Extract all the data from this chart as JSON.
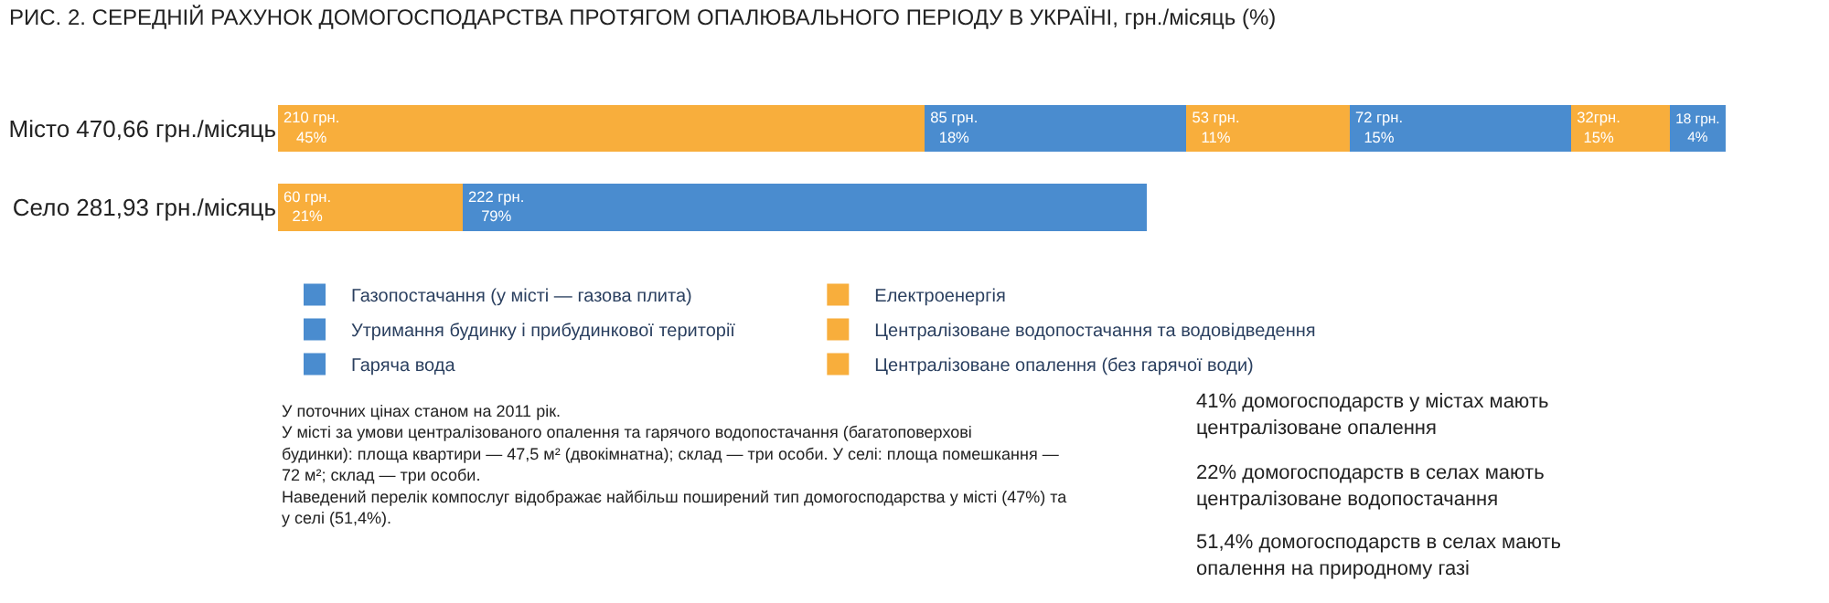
{
  "chart_data": {
    "type": "bar",
    "orientation": "horizontal",
    "stacked": true,
    "title": "РИС. 2. СЕРЕДНІЙ РАХУНОК ДОМОГОСПОДАРСТВА ПРОТЯГОМ ОПАЛЮВАЛЬНОГО ПЕРІОДУ В УКРАЇНІ, грн./місяць (%)",
    "categories": [
      "Місто 470,66 грн./місяць",
      "Село 281,93 грн./місяць"
    ],
    "series": [
      {
        "name": "Централізоване опалення (без гарячої води)",
        "color": "#f8ae3c",
        "values": [
          210,
          null
        ],
        "value_labels": [
          "210 грн.\n45%",
          null
        ]
      },
      {
        "name": "Гаряча вода",
        "color": "#4a8ccf",
        "values": [
          85,
          null
        ],
        "value_labels": [
          "85 грн.\n18%",
          null
        ]
      },
      {
        "name": "Централізоване водопостачання та водовідведення",
        "color": "#f8ae3c",
        "values": [
          53,
          null
        ],
        "value_labels": [
          "53 грн.\n11%",
          null
        ]
      },
      {
        "name": "Утримання будинку і прибудинкової території",
        "color": "#4a8ccf",
        "values": [
          72,
          null
        ],
        "value_labels": [
          "72 грн.\n15%",
          null
        ]
      },
      {
        "name": "Електроенергія",
        "color": "#f8ae3c",
        "values": [
          32,
          60
        ],
        "value_labels": [
          "32грн.\n15%",
          "60 грн.\n21%"
        ]
      },
      {
        "name": "Газопостачання (у місті — газова плита)",
        "color": "#4a8ccf",
        "values": [
          18,
          222
        ],
        "value_labels": [
          "18 грн.\n4%",
          "222 грн.\n79%"
        ]
      }
    ],
    "legend": "bottom",
    "tick_labels": "y",
    "annotations": [
      "41% домогосподарств у містах мають централізоване опалення",
      "22% домогосподарств в селах мають централізоване водопостачання",
      "51,4% домогосподарств в селах мають опалення на природному газі",
      "У поточних цінах станом на 2011 рік.",
      "У місті за умови централізованого опалення та гарячого водопостачання (багатоповерхові будинки): площа квартири — 47,5 м² (двокімнатна); склад — три особи. У селі: площа помешкання — 72 м²; склад — три особи.",
      "Наведений перелік компослуг відображає найбільш поширений тип домогосподарства у місті (47%) та у селі (51,4%)."
    ]
  }
}
